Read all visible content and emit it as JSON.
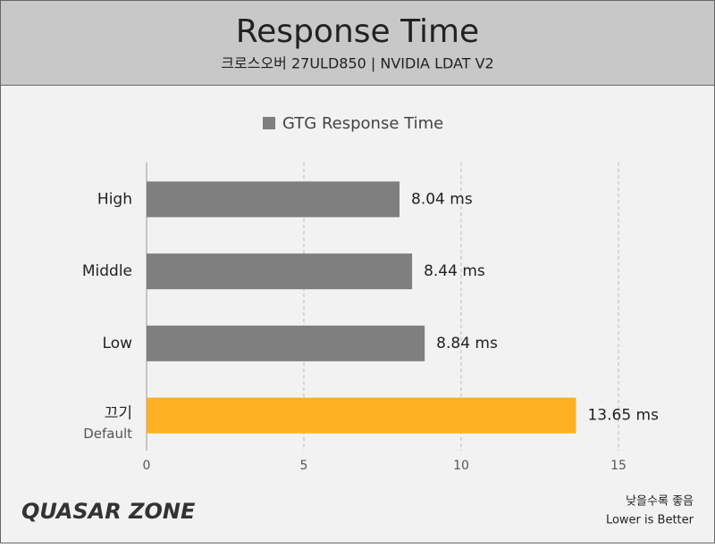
{
  "chart_data": {
    "type": "hbar",
    "title": "Response Time",
    "subtitle": "크로스오버 27ULD850  |  NVIDIA LDAT V2",
    "categories": [
      "High",
      "Middle",
      "Low",
      "끄기"
    ],
    "category_sublabels": [
      null,
      null,
      null,
      "Default"
    ],
    "series": [
      {
        "name": "GTG Response Time",
        "color": "#7f7f7f",
        "values": [
          8.04,
          8.44,
          8.84,
          13.65
        ],
        "value_labels": [
          "8.04 ms",
          "8.44 ms",
          "8.84 ms",
          "13.65 ms"
        ]
      }
    ],
    "bar_colors": [
      "#7f7f7f",
      "#7f7f7f",
      "#7f7f7f",
      "#fdb022"
    ],
    "xlim": [
      0,
      17.5
    ],
    "xticks": [
      0,
      5,
      10,
      15
    ],
    "grid": true,
    "legend": "top",
    "logo": "QUASAR ZONE",
    "note": [
      "낮을수록 좋음",
      "Lower is Better"
    ]
  }
}
